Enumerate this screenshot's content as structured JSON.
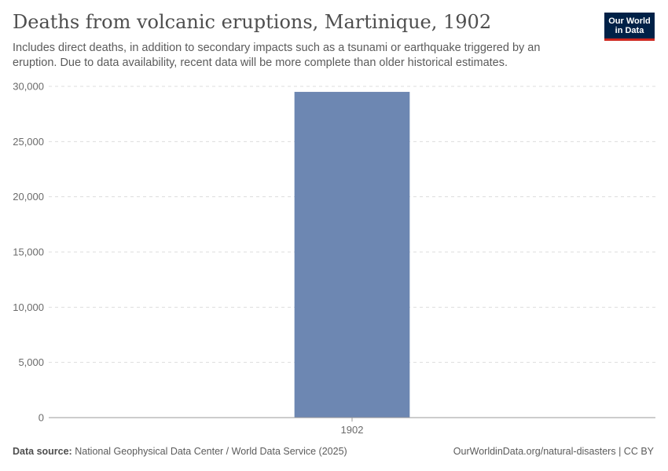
{
  "header": {
    "title": "Deaths from volcanic eruptions, Martinique, 1902",
    "subtitle": "Includes direct deaths, in addition to secondary impacts such as a tsunami or earthquake triggered by an eruption. Due to data availability, recent data will be more complete than older historical estimates."
  },
  "logo": {
    "line1": "Our World",
    "line2": "in Data"
  },
  "footer": {
    "source_label": "Data source:",
    "source_text": "National Geophysical Data Center / World Data Service (2025)",
    "url_text": "OurWorldinData.org/natural-disasters | CC BY"
  },
  "chart_data": {
    "type": "bar",
    "categories": [
      "1902"
    ],
    "values": [
      29500
    ],
    "ylim": [
      0,
      30000
    ],
    "yticks": [
      0,
      5000,
      10000,
      15000,
      20000,
      25000,
      30000
    ],
    "ytick_labels": [
      "0",
      "5,000",
      "10,000",
      "15,000",
      "20,000",
      "25,000",
      "30,000"
    ],
    "grid": true,
    "bar_color": "#6d87b2"
  }
}
